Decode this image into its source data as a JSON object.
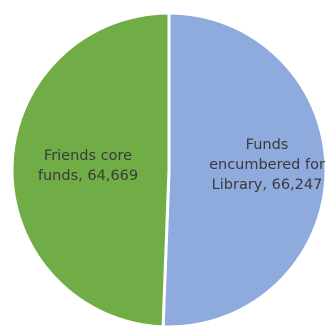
{
  "chart_data": {
    "type": "pie",
    "title": "",
    "slices": [
      {
        "label_lines": [
          "Funds",
          "encumbered for",
          "Library,  66,247"
        ],
        "label": "Funds encumbered for Library",
        "value": 66247,
        "color": "#8faadc"
      },
      {
        "label_lines": [
          "Friends core",
          "funds,  64,669"
        ],
        "label": "Friends core funds",
        "value": 64669,
        "color": "#70ad47"
      }
    ],
    "legend": "none",
    "data_labels": "inside"
  }
}
